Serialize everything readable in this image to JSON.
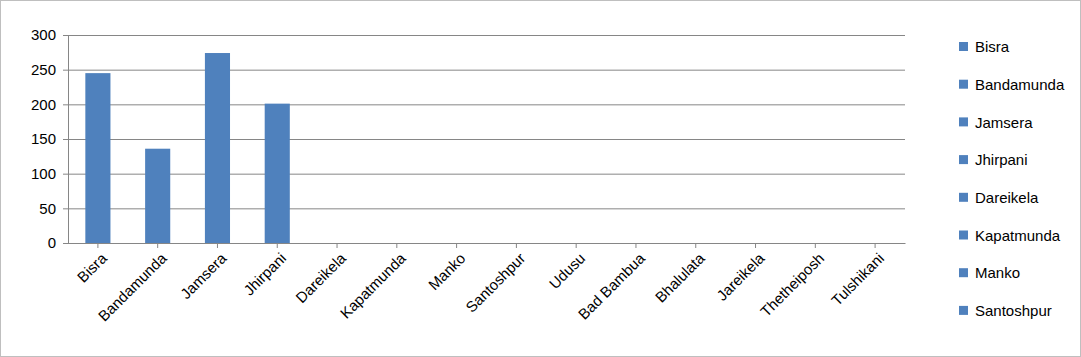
{
  "chart_data": {
    "type": "bar",
    "categories": [
      "Bisra",
      "Bandamunda",
      "Jamsera",
      "Jhirpani",
      "Dareikela",
      "Kapatmunda",
      "Manko",
      "Santoshpur",
      "Udusu",
      "Bad Bambua",
      "Bhalulata",
      "Jareikela",
      "Thetheiposh",
      "Tulshikani"
    ],
    "values": [
      245,
      136,
      274,
      201,
      0,
      0,
      0,
      0,
      0,
      0,
      0,
      0,
      0,
      0
    ],
    "color": "#4f81bd",
    "ylim": [
      0,
      300
    ],
    "yticks": [
      0,
      50,
      100,
      150,
      200,
      250,
      300
    ],
    "grid": true,
    "legend": "right"
  }
}
